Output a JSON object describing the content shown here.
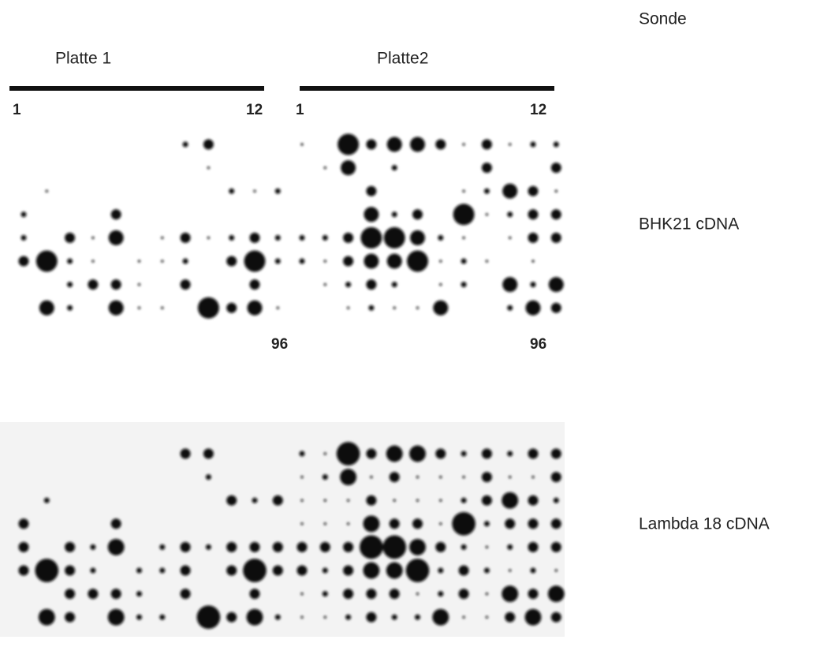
{
  "header": {
    "probe": "Sonde"
  },
  "plates": [
    {
      "title": "Platte 1",
      "first": "1",
      "last_col": "12",
      "last_well": "96"
    },
    {
      "title": "Platte2",
      "first": "1",
      "last_col": "12",
      "last_well": "96"
    }
  ],
  "blots": [
    {
      "label": "BHK21 cDNA"
    },
    {
      "label": "Lambda 18 cDNA"
    }
  ]
}
